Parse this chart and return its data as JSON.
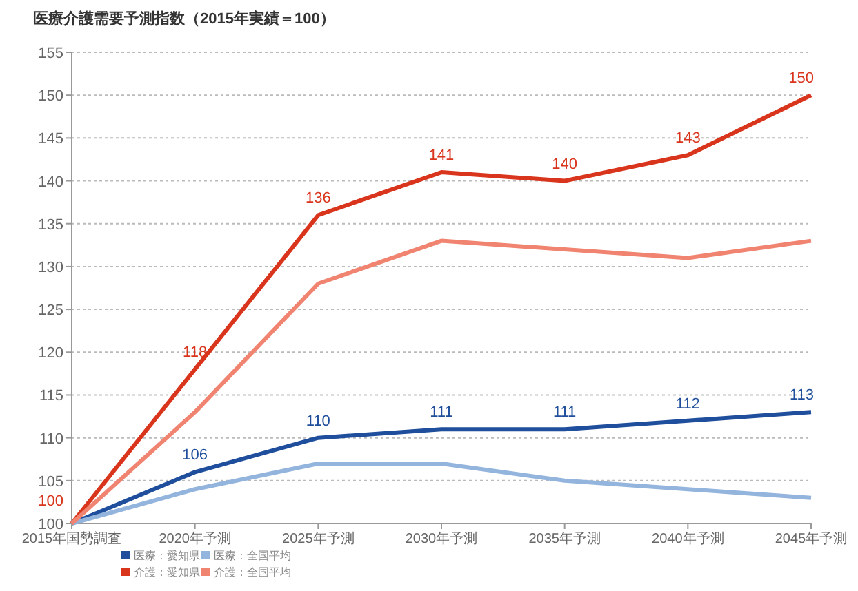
{
  "chart_data": {
    "type": "line",
    "title": "医療介護需要予測指数（2015年実績＝100）",
    "categories": [
      "2015年国勢調査",
      "2020年予測",
      "2025年予測",
      "2030年予測",
      "2035年予測",
      "2040年予測",
      "2045年予測"
    ],
    "ylim": [
      100,
      155
    ],
    "yticks": [
      100,
      105,
      110,
      115,
      120,
      125,
      130,
      135,
      140,
      145,
      150,
      155
    ],
    "grid": "y",
    "legend": "bottom left",
    "series": [
      {
        "name": "医療：愛知県",
        "color": "#1f4e9c",
        "values": [
          100,
          106,
          110,
          111,
          111,
          112,
          113
        ],
        "value_labels": [
          null,
          "106",
          "110",
          "111",
          "111",
          "112",
          "113"
        ]
      },
      {
        "name": "医療：全国平均",
        "color": "#93b4dc",
        "values": [
          100,
          104,
          107,
          107,
          105,
          104,
          103
        ]
      },
      {
        "name": "介護：愛知県",
        "color": "#d9341c",
        "values": [
          100,
          118,
          136,
          141,
          140,
          143,
          150
        ],
        "value_labels": [
          "100",
          "118",
          "136",
          "141",
          "140",
          "143",
          "150"
        ]
      },
      {
        "name": "介護：全国平均",
        "color": "#f08470",
        "values": [
          100,
          113,
          128,
          133,
          132,
          131,
          133
        ]
      }
    ]
  }
}
